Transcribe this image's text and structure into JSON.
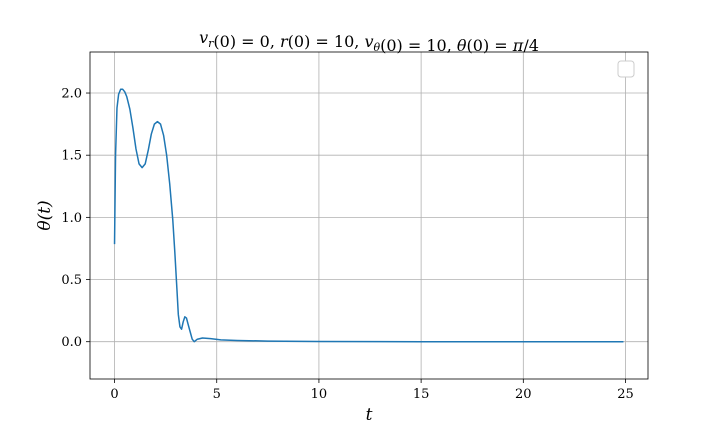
{
  "chart_data": {
    "type": "line",
    "title": "v_r(0) = 0, r(0) = 10, v_θ(0) = 10, θ(0) = π/4",
    "xlabel": "t",
    "ylabel": "θ(t)",
    "xlim": [
      -1.2,
      26.1
    ],
    "ylim": [
      -0.3,
      2.33
    ],
    "xticks": [
      0,
      5,
      10,
      15,
      20,
      25
    ],
    "yticks": [
      0.0,
      0.5,
      1.0,
      1.5,
      2.0
    ],
    "xtick_labels": [
      "0",
      "5",
      "10",
      "15",
      "20",
      "25"
    ],
    "ytick_labels": [
      "0.0",
      "0.5",
      "1.0",
      "1.5",
      "2.0"
    ],
    "grid": true,
    "legend": "top-right (empty)",
    "series": [
      {
        "color": "#1f77b4",
        "x": [
          0.0,
          0.05,
          0.12,
          0.2,
          0.3,
          0.4,
          0.5,
          0.6,
          0.75,
          0.9,
          1.05,
          1.2,
          1.35,
          1.5,
          1.65,
          1.8,
          1.95,
          2.1,
          2.25,
          2.4,
          2.55,
          2.7,
          2.85,
          2.95,
          3.05,
          3.12,
          3.2,
          3.28,
          3.36,
          3.44,
          3.52,
          3.6,
          3.7,
          3.8,
          3.9,
          4.05,
          4.3,
          4.7,
          5.2,
          6.0,
          7.5,
          10.0,
          15.0,
          20.0,
          24.9
        ],
        "y": [
          0.785,
          1.5,
          1.88,
          1.99,
          2.03,
          2.03,
          2.01,
          1.97,
          1.87,
          1.72,
          1.55,
          1.43,
          1.4,
          1.43,
          1.54,
          1.67,
          1.75,
          1.77,
          1.75,
          1.66,
          1.5,
          1.27,
          0.98,
          0.72,
          0.43,
          0.22,
          0.12,
          0.1,
          0.16,
          0.2,
          0.19,
          0.14,
          0.08,
          0.02,
          0.0,
          0.02,
          0.03,
          0.025,
          0.015,
          0.01,
          0.005,
          0.002,
          0.0,
          0.0,
          0.0
        ]
      }
    ]
  }
}
